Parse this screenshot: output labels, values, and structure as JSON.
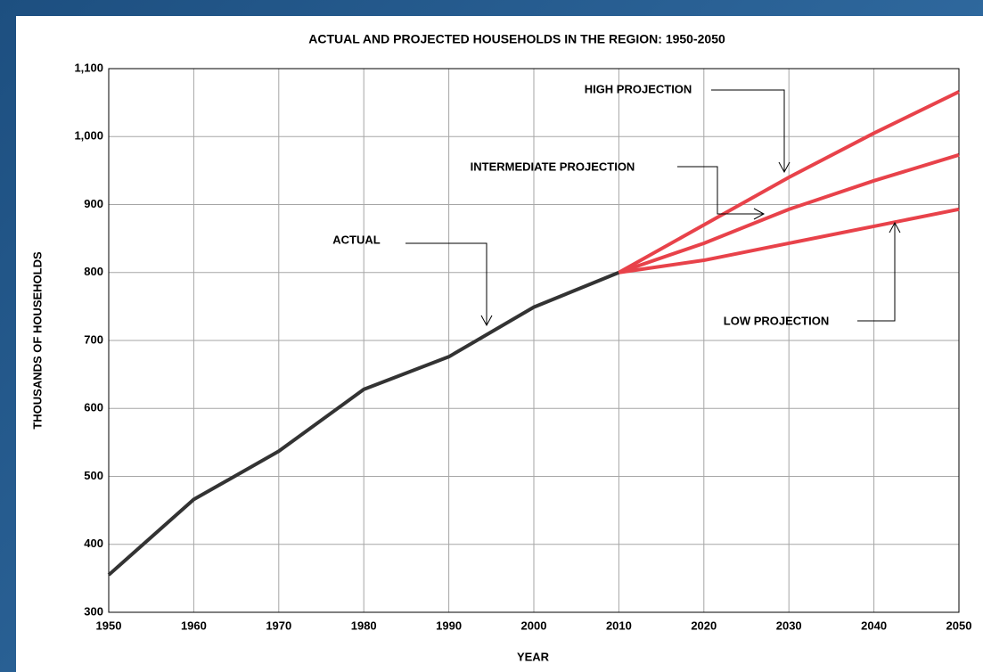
{
  "chart_data": {
    "type": "line",
    "title": "ACTUAL AND PROJECTED HOUSEHOLDS IN THE REGION: 1950-2050",
    "x_label": "YEAR",
    "y_label": "THOUSANDS OF HOUSEHOLDS",
    "x": [
      1950,
      1960,
      1970,
      1980,
      1990,
      2000,
      2010,
      2020,
      2030,
      2040,
      2050
    ],
    "series": [
      {
        "name": "ACTUAL",
        "color": "#333333",
        "values": [
          355,
          466,
          537,
          628,
          676,
          749,
          800,
          null,
          null,
          null,
          null
        ]
      },
      {
        "name": "HIGH PROJECTION",
        "color": "#e8424a",
        "values": [
          null,
          null,
          null,
          null,
          null,
          null,
          800,
          870,
          940,
          1005,
          1066
        ]
      },
      {
        "name": "INTERMEDIATE PROJECTION",
        "color": "#e8424a",
        "values": [
          null,
          null,
          null,
          null,
          null,
          null,
          800,
          843,
          893,
          935,
          973
        ]
      },
      {
        "name": "LOW PROJECTION",
        "color": "#e8424a",
        "values": [
          null,
          null,
          null,
          null,
          null,
          null,
          800,
          818,
          843,
          868,
          893
        ]
      }
    ],
    "xlim": [
      1950,
      2050
    ],
    "xticks": [
      1950,
      1960,
      1970,
      1980,
      1990,
      2000,
      2010,
      2020,
      2030,
      2040,
      2050
    ],
    "ylim": [
      300,
      1100
    ],
    "yticks": [
      300,
      400,
      500,
      600,
      700,
      800,
      900,
      {
        "value": 1000,
        "label": "1,000"
      },
      {
        "value": 1100,
        "label": "1,100"
      }
    ],
    "grid": true
  }
}
